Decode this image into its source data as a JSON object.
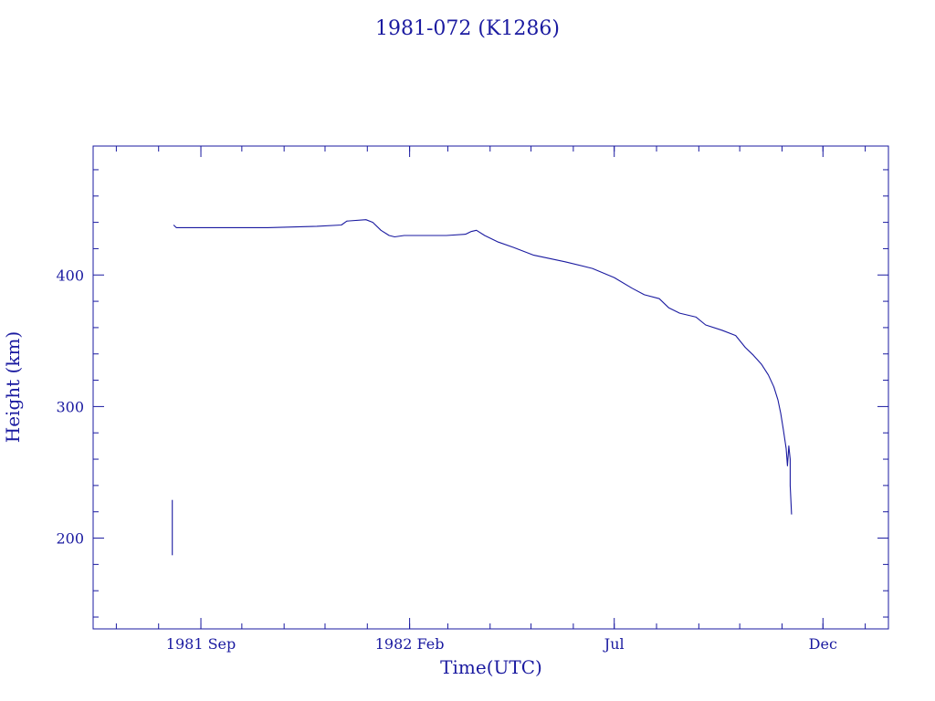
{
  "chart_data": {
    "type": "line",
    "title": "1981-072 (K1286)",
    "xlabel": "Time(UTC)",
    "ylabel": "Height (km)",
    "x_tick_labels": [
      {
        "label": "1981 Sep",
        "date": "1981-09-01"
      },
      {
        "label": "1982 Feb",
        "date": "1982-02-01"
      },
      {
        "label": "Jul",
        "date": "1982-07-01"
      },
      {
        "label": "Dec",
        "date": "1982-12-01"
      }
    ],
    "y_tick_labels": [
      200,
      300,
      400
    ],
    "xlim": [
      "1981-06-14",
      "1983-01-18"
    ],
    "ylim": [
      131,
      498
    ],
    "grid": false,
    "legend": "none",
    "colors": {
      "axis": "#1a1aa0",
      "line": "#1a1aa0",
      "text": "#1a1aa0"
    },
    "series": [
      {
        "points": [
          [
            "1981-08-12",
            438
          ],
          [
            "1981-08-14",
            436
          ],
          [
            "1981-08-20",
            436
          ],
          [
            "1981-09-15",
            436
          ],
          [
            "1981-10-20",
            436
          ],
          [
            "1981-11-25",
            437
          ],
          [
            "1981-12-13",
            438
          ],
          [
            "1981-12-17",
            441
          ],
          [
            "1981-12-31",
            442
          ],
          [
            "1982-01-05",
            440
          ],
          [
            "1982-01-11",
            434
          ],
          [
            "1982-01-17",
            430
          ],
          [
            "1982-01-21",
            429
          ],
          [
            "1982-01-28",
            430
          ],
          [
            "1982-02-28",
            430
          ],
          [
            "1982-03-14",
            431
          ],
          [
            "1982-03-18",
            433
          ],
          [
            "1982-03-22",
            434
          ],
          [
            "1982-03-28",
            430
          ],
          [
            "1982-04-07",
            425
          ],
          [
            "1982-04-18",
            421
          ],
          [
            "1982-05-03",
            415
          ],
          [
            "1982-05-26",
            410
          ],
          [
            "1982-06-15",
            405
          ],
          [
            "1982-07-01",
            398
          ],
          [
            "1982-07-14",
            390
          ],
          [
            "1982-07-23",
            385
          ],
          [
            "1982-08-03",
            382
          ],
          [
            "1982-08-10",
            375
          ],
          [
            "1982-08-18",
            371
          ],
          [
            "1982-08-30",
            368
          ],
          [
            "1982-09-06",
            362
          ],
          [
            "1982-09-18",
            358
          ],
          [
            "1982-09-28",
            354
          ],
          [
            "1982-10-05",
            345
          ],
          [
            "1982-10-11",
            339
          ],
          [
            "1982-10-17",
            332
          ],
          [
            "1982-10-22",
            324
          ],
          [
            "1982-10-26",
            315
          ],
          [
            "1982-10-29",
            305
          ],
          [
            "1982-10-31",
            295
          ],
          [
            "1982-11-02",
            282
          ],
          [
            "1982-11-04",
            268
          ],
          [
            "1982-11-05",
            255
          ],
          [
            "1982-11-06",
            270
          ],
          [
            "1982-11-07",
            260
          ],
          [
            "1982-11-07",
            240
          ],
          [
            "1982-11-08",
            218
          ]
        ]
      },
      {
        "points": [
          [
            "1981-08-11",
            229
          ],
          [
            "1981-08-11",
            187
          ]
        ]
      }
    ]
  }
}
